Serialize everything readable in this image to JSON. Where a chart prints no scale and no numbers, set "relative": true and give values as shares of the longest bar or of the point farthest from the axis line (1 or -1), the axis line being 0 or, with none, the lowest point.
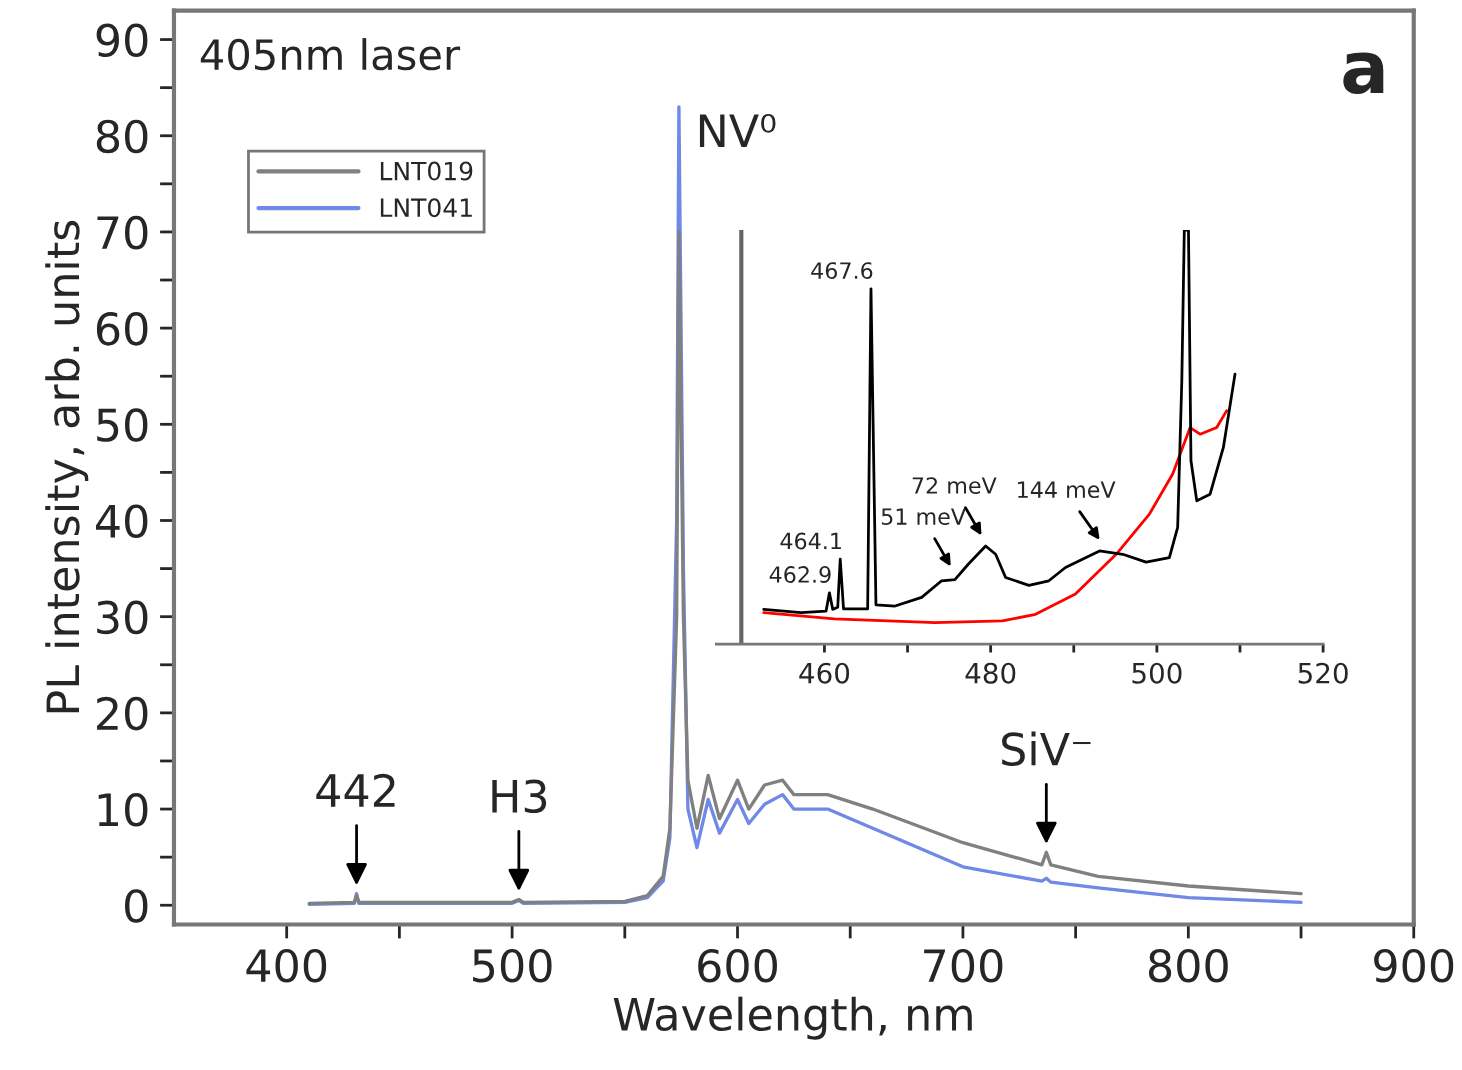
{
  "chart_data": [
    {
      "type": "line",
      "xlabel": "Wavelength, nm",
      "ylabel": "PL intensity, arb. units",
      "xlim": [
        350,
        900
      ],
      "ylim": [
        -2,
        93
      ],
      "xticks": [
        400,
        {
          "value": 450,
          "label": null
        },
        500,
        {
          "value": 550,
          "label": null
        },
        600,
        {
          "value": 650,
          "label": null
        },
        700,
        {
          "value": 750,
          "label": null
        },
        800,
        {
          "value": 850,
          "label": null
        },
        900
      ],
      "yticks": [
        0,
        {
          "value": 5,
          "label": null
        },
        10,
        {
          "value": 15,
          "label": null
        },
        20,
        {
          "value": 25,
          "label": null
        },
        30,
        {
          "value": 35,
          "label": null
        },
        40,
        {
          "value": 45,
          "label": null
        },
        50,
        {
          "value": 55,
          "label": null
        },
        60,
        {
          "value": 65,
          "label": null
        },
        70,
        {
          "value": 75,
          "label": null
        },
        80,
        {
          "value": 85,
          "label": null
        },
        90
      ],
      "legend": "top left",
      "grid": false,
      "series": [
        {
          "name": "LNT019",
          "color": "#808080",
          "x": [
            410,
            430,
            431,
            432,
            500,
            503,
            505,
            550,
            560,
            567,
            570,
            573,
            574,
            576,
            578,
            582,
            587,
            592,
            600,
            605,
            612,
            620,
            625,
            640,
            660,
            700,
            735,
            737,
            739,
            760,
            800,
            850
          ],
          "values": [
            0.2,
            0.3,
            1.0,
            0.3,
            0.3,
            0.6,
            0.3,
            0.4,
            1,
            3,
            8,
            30,
            70,
            30,
            13,
            8,
            13.5,
            9,
            13,
            10,
            12.5,
            13,
            11.5,
            11.5,
            10,
            6.5,
            4.2,
            5.5,
            4.2,
            3,
            2,
            1.2
          ]
        },
        {
          "name": "LNT041",
          "color": "#7088e6",
          "x": [
            410,
            430,
            431,
            432,
            500,
            503,
            505,
            550,
            560,
            567,
            570,
            573,
            574,
            576,
            578,
            582,
            587,
            592,
            600,
            605,
            612,
            620,
            625,
            640,
            660,
            700,
            735,
            737,
            739,
            760,
            800,
            850
          ],
          "values": [
            0.1,
            0.2,
            1.2,
            0.2,
            0.2,
            0.5,
            0.2,
            0.3,
            0.8,
            2.5,
            7,
            40,
            83,
            35,
            10,
            6,
            11,
            7.5,
            11,
            8.5,
            10.5,
            11.5,
            10,
            10,
            8,
            4,
            2.5,
            2.8,
            2.4,
            1.8,
            0.8,
            0.3
          ]
        }
      ],
      "annotations": [
        "405nm laser",
        "a",
        {
          "text": "NV⁰",
          "x": 574,
          "y": 83
        },
        {
          "text": "442",
          "x": 431,
          "y": 1.2
        },
        {
          "text": "H3",
          "x": 503,
          "y": 0.6
        },
        {
          "text": "SiV⁻",
          "x": 737,
          "y": 5.5
        }
      ]
    },
    {
      "type": "line",
      "relative": true,
      "xlim": [
        447,
        520
      ],
      "xticks": [
        460,
        {
          "value": 470,
          "label": null
        },
        480,
        {
          "value": 490,
          "label": null
        },
        500,
        {
          "value": 510,
          "label": null
        },
        520
      ],
      "ref_lines": [
        {
          "axis": "x",
          "value": 450,
          "color": "#666666"
        }
      ],
      "series": [
        {
          "color": "#000000",
          "x": [
            452.7,
            457.2,
            460.2,
            460.6,
            461.0,
            461.6,
            461.9,
            462.3,
            465.2,
            465.6,
            466.2,
            468.5,
            471.7,
            474.1,
            475.7,
            477.3,
            479.4,
            480.6,
            481.8,
            484.6,
            487.0,
            489.0,
            493.1,
            495.9,
            498.7,
            501.5,
            502.5,
            503.0,
            503.3,
            503.8,
            504.1,
            504.8,
            506.4,
            508.0,
            509.4
          ],
          "values": [
            0.084,
            0.076,
            0.08,
            0.124,
            0.084,
            0.089,
            0.205,
            0.085,
            0.085,
            0.858,
            0.095,
            0.092,
            0.113,
            0.153,
            0.156,
            0.193,
            0.237,
            0.217,
            0.161,
            0.142,
            0.153,
            0.185,
            0.225,
            0.217,
            0.198,
            0.209,
            0.282,
            0.636,
            1.0,
            1.0,
            0.443,
            0.346,
            0.362,
            0.475,
            0.652
          ]
        },
        {
          "color": "#ff0000",
          "x": [
            452.7,
            461.2,
            473.3,
            481.4,
            485.4,
            490.2,
            495.1,
            499.1,
            501.9,
            504.0,
            505.2,
            507.2,
            508.4
          ],
          "values": [
            0.076,
            0.061,
            0.052,
            0.056,
            0.072,
            0.121,
            0.217,
            0.314,
            0.411,
            0.523,
            0.507,
            0.523,
            0.564
          ]
        }
      ],
      "annotations": [
        {
          "text": "462.9",
          "x": 460.6,
          "y": 0.124
        },
        {
          "text": "464.1",
          "x": 461.9,
          "y": 0.205
        },
        {
          "text": "467.6",
          "x": 465.6,
          "y": 0.858
        },
        {
          "text": "51 meV",
          "x": 475.7,
          "y": 0.17
        },
        {
          "text": "72 meV",
          "x": 479.4,
          "y": 0.245
        },
        {
          "text": "144 meV",
          "x": 493.7,
          "y": 0.235
        }
      ]
    }
  ]
}
